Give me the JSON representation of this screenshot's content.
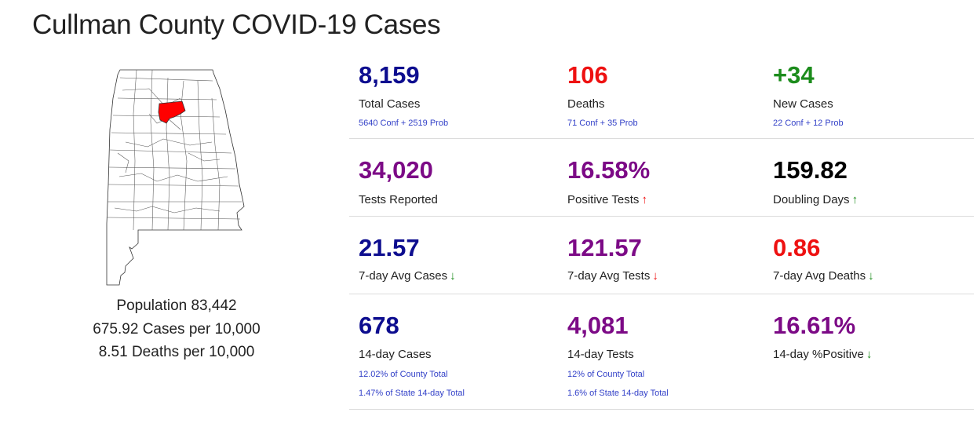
{
  "page": {
    "title": "Cullman County COVID-19 Cases"
  },
  "colors": {
    "blue": "#0d0d8f",
    "red": "#ee1111",
    "green": "#1c8c1c",
    "purple": "#7c0a86",
    "black": "#000000",
    "sub_blue": "#3341c8",
    "highlight_county": "#ff0000"
  },
  "population": {
    "population": "Population 83,442",
    "cases_per_10k": "675.92 Cases per 10,000",
    "deaths_per_10k": "8.51 Deaths per 10,000"
  },
  "map": {
    "state": "Alabama",
    "highlighted_county": "Cullman"
  },
  "rows": [
    [
      {
        "value": "8,159",
        "label": "Total Cases",
        "subs": [
          "5640 Conf + 2519 Prob"
        ],
        "color": "blue",
        "arrow": null
      },
      {
        "value": "106",
        "label": "Deaths",
        "subs": [
          "71 Conf + 35 Prob"
        ],
        "color": "red",
        "arrow": null
      },
      {
        "value": "+34",
        "label": "New Cases",
        "subs": [
          "22 Conf + 12 Prob"
        ],
        "color": "green",
        "arrow": null
      }
    ],
    [
      {
        "value": "34,020",
        "label": "Tests Reported",
        "subs": [],
        "color": "purple",
        "arrow": null
      },
      {
        "value": "16.58%",
        "label": "Positive Tests",
        "subs": [],
        "color": "purple",
        "arrow": "up-red"
      },
      {
        "value": "159.82",
        "label": "Doubling Days",
        "subs": [],
        "color": "black",
        "arrow": "up-green"
      }
    ],
    [
      {
        "value": "21.57",
        "label": "7-day Avg Cases",
        "subs": [],
        "color": "blue",
        "arrow": "down-green"
      },
      {
        "value": "121.57",
        "label": "7-day Avg Tests",
        "subs": [],
        "color": "purple",
        "arrow": "down-red"
      },
      {
        "value": "0.86",
        "label": "7-day Avg Deaths",
        "subs": [],
        "color": "red",
        "arrow": "down-green"
      }
    ],
    [
      {
        "value": "678",
        "label": "14-day Cases",
        "subs": [
          "12.02% of County Total",
          "1.47% of State 14-day Total"
        ],
        "color": "blue",
        "arrow": null
      },
      {
        "value": "4,081",
        "label": "14-day Tests",
        "subs": [
          "12% of County Total",
          "1.6% of State 14-day Total"
        ],
        "color": "purple",
        "arrow": null
      },
      {
        "value": "16.61%",
        "label": "14-day %Positive",
        "subs": [],
        "color": "purple",
        "arrow": "down-green"
      }
    ]
  ]
}
